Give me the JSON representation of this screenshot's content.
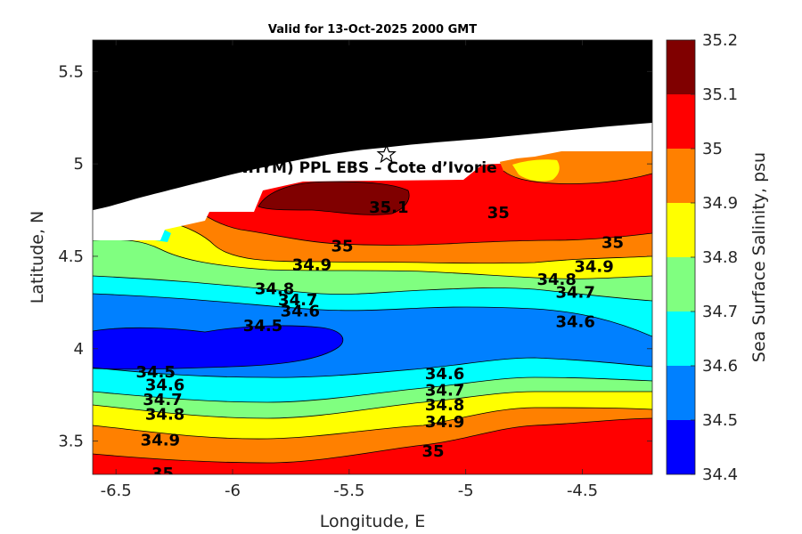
{
  "chart_data": {
    "type": "heatmap",
    "subtype": "filled-contour",
    "title": "Valid for 13-Oct-2025 2000 GMT",
    "xlabel": "Longitude, E",
    "ylabel": "Latitude, N",
    "xlim": [
      -6.6,
      -4.2
    ],
    "ylim": [
      3.32,
      5.67
    ],
    "xticks": [
      -6.5,
      -6,
      -5.5,
      -5,
      -4.5
    ],
    "xtick_labels": [
      "-6.5",
      "-6",
      "-5.5",
      "-5",
      "-4.5"
    ],
    "yticks": [
      3.5,
      4,
      4.5,
      5,
      5.5
    ],
    "ytick_labels": [
      "3.5",
      "4",
      "4.5",
      "5",
      "5.5"
    ],
    "colorbar": {
      "label": "Sea Surface Salinity, psu",
      "levels": [
        34.4,
        34.5,
        34.6,
        34.7,
        34.8,
        34.9,
        35,
        35.1,
        35.2
      ],
      "level_labels": [
        "34.4",
        "34.5",
        "34.6",
        "34.7",
        "34.8",
        "34.9",
        "35",
        "35.1",
        "35.2"
      ],
      "colors": [
        "#0000ff",
        "#0080ff",
        "#00ffff",
        "#80ff80",
        "#ffff00",
        "#ff8000",
        "#ff0000",
        "#800000"
      ]
    },
    "contour_labels": [
      {
        "text": "35.1",
        "lon": -5.33,
        "lat": 4.76
      },
      {
        "text": "35",
        "lon": -4.86,
        "lat": 4.73
      },
      {
        "text": "35",
        "lon": -5.53,
        "lat": 4.55
      },
      {
        "text": "35",
        "lon": -4.37,
        "lat": 4.57
      },
      {
        "text": "34.9",
        "lon": -5.66,
        "lat": 4.45
      },
      {
        "text": "34.9",
        "lon": -4.45,
        "lat": 4.44
      },
      {
        "text": "34.8",
        "lon": -5.82,
        "lat": 4.32
      },
      {
        "text": "34.8",
        "lon": -4.61,
        "lat": 4.37
      },
      {
        "text": "34.7",
        "lon": -5.72,
        "lat": 4.26
      },
      {
        "text": "34.7",
        "lon": -4.53,
        "lat": 4.3
      },
      {
        "text": "34.6",
        "lon": -5.71,
        "lat": 4.2
      },
      {
        "text": "34.6",
        "lon": -4.53,
        "lat": 4.14
      },
      {
        "text": "34.5",
        "lon": -5.87,
        "lat": 4.12
      },
      {
        "text": "34.5",
        "lon": -6.33,
        "lat": 3.87
      },
      {
        "text": "34.6",
        "lon": -6.29,
        "lat": 3.8
      },
      {
        "text": "34.7",
        "lon": -6.3,
        "lat": 3.72
      },
      {
        "text": "34.8",
        "lon": -6.29,
        "lat": 3.64
      },
      {
        "text": "34.9",
        "lon": -6.31,
        "lat": 3.5
      },
      {
        "text": "35",
        "lon": -6.3,
        "lat": 3.32
      },
      {
        "text": "34.6",
        "lon": -5.09,
        "lat": 3.86
      },
      {
        "text": "34.7",
        "lon": -5.09,
        "lat": 3.77
      },
      {
        "text": "34.8",
        "lon": -5.09,
        "lat": 3.69
      },
      {
        "text": "34.9",
        "lon": -5.09,
        "lat": 3.6
      },
      {
        "text": "35",
        "lon": -5.14,
        "lat": 3.44
      }
    ],
    "annotation": "(ONHYM) PPL EBS  – Cote d’Ivorie",
    "marker": {
      "symbol": "star",
      "lon": -5.34,
      "lat": 5.05
    },
    "land_color": "#000000",
    "no_data_color": "#ffffff",
    "grid": false
  }
}
